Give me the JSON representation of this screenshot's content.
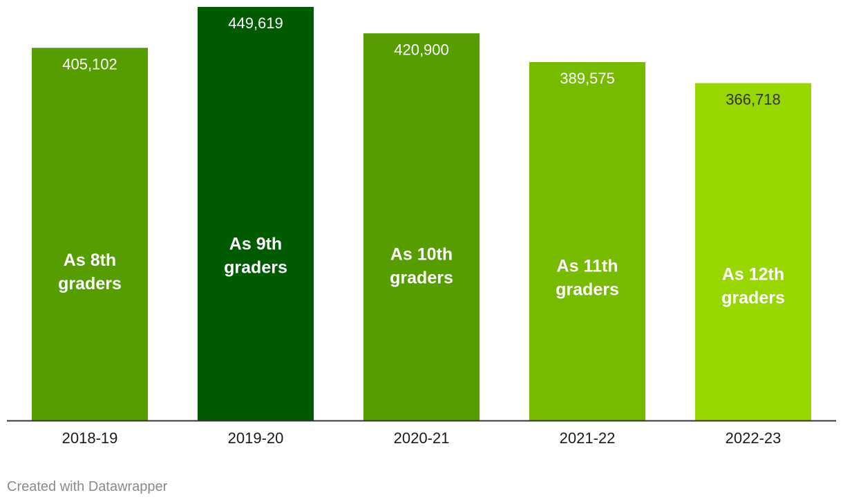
{
  "chart_data": {
    "type": "bar",
    "categories": [
      "2018-19",
      "2019-20",
      "2020-21",
      "2021-22",
      "2022-23"
    ],
    "values": [
      405102,
      449619,
      420900,
      389575,
      366718
    ],
    "value_labels": [
      "405,102",
      "449,619",
      "420,900",
      "389,575",
      "366,718"
    ],
    "bar_labels": [
      [
        "As 8th",
        "graders"
      ],
      [
        "As 9th",
        "graders"
      ],
      [
        "As 10th",
        "graders"
      ],
      [
        "As 11th",
        "graders"
      ],
      [
        "As 12th",
        "graders"
      ]
    ],
    "colors": [
      "#559d00",
      "#005a00",
      "#559d00",
      "#77bb00",
      "#98d600"
    ],
    "value_label_colors": [
      "#ffffff",
      "#ffffff",
      "#ffffff",
      "#ffffff",
      "#333333"
    ],
    "ylim": [
      0,
      449619
    ],
    "grid": false,
    "legend": "none",
    "baseline_color": "#333333"
  },
  "footer": {
    "credit": "Created with Datawrapper"
  }
}
